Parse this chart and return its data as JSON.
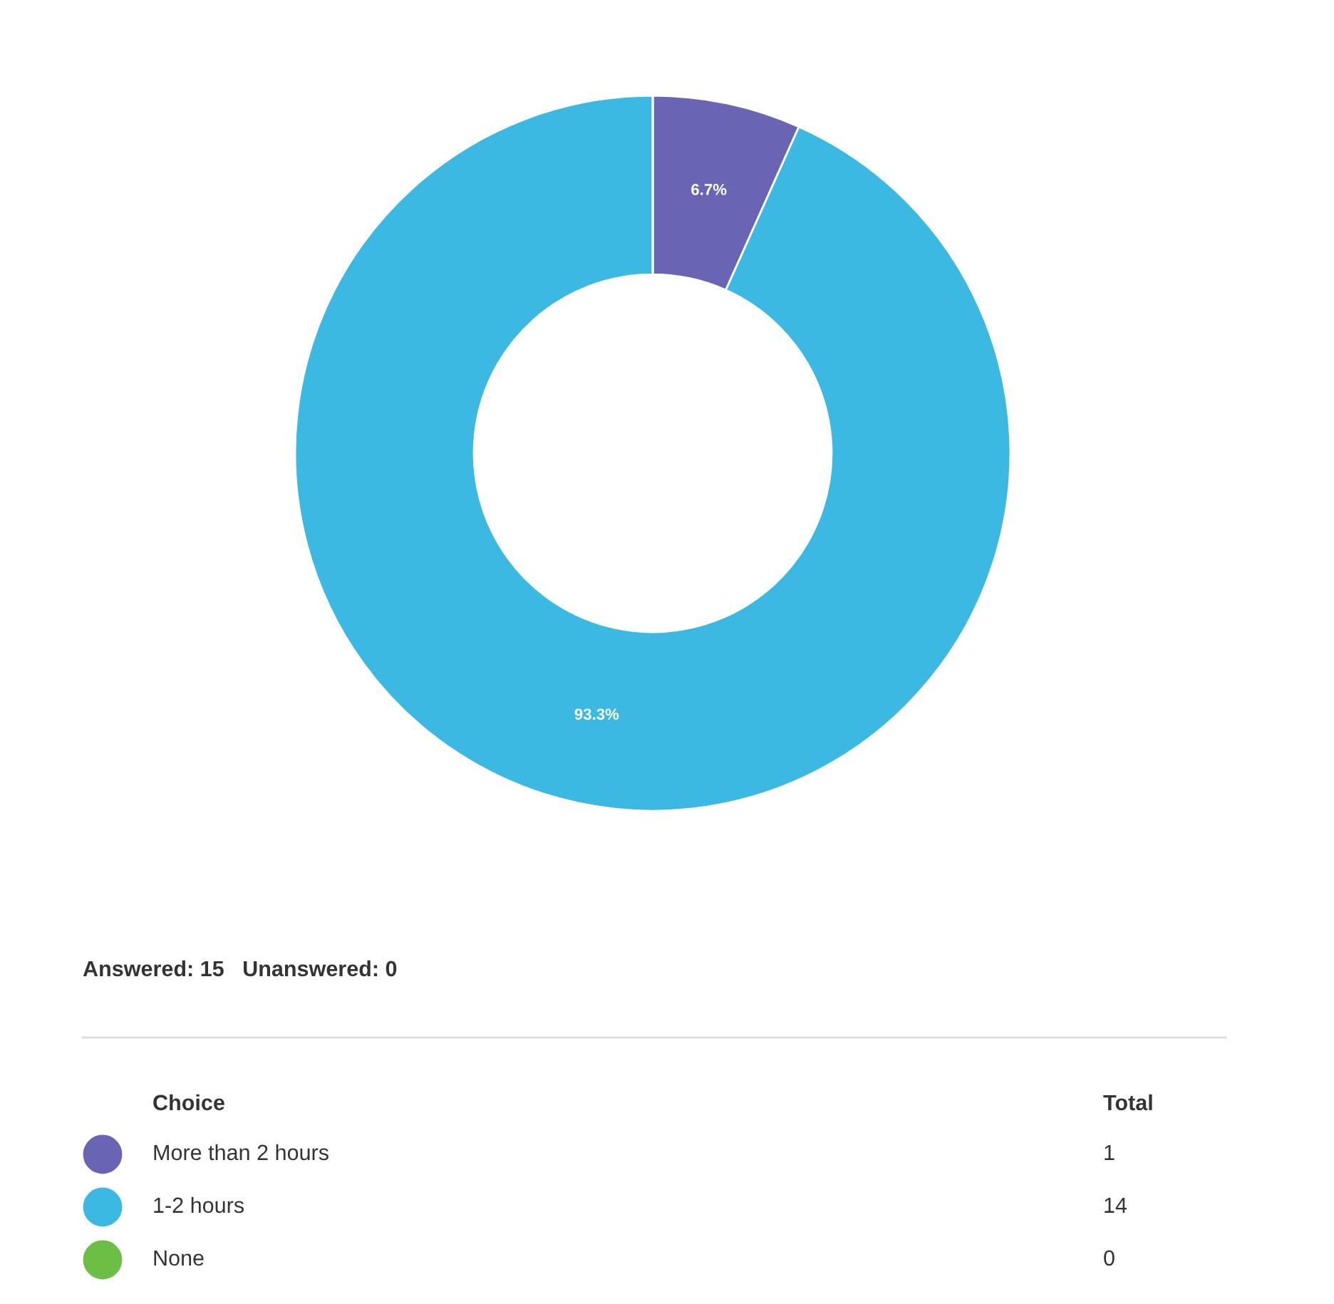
{
  "chart_data": {
    "type": "donut",
    "categories": [
      "More than 2 hours",
      "1-2 hours",
      "None"
    ],
    "values": [
      6.7,
      93.3,
      0
    ],
    "totals": [
      "1",
      "14",
      "0"
    ],
    "colors": [
      "#6a64b4",
      "#3bb9e2",
      "#6cbf45"
    ],
    "value_labels": [
      "6.7%",
      "93.3%",
      null
    ],
    "legend": "bottom",
    "legend_title": "Choice",
    "annotations": [
      "Answered: 15   Unanswered: 0",
      "Total"
    ]
  }
}
